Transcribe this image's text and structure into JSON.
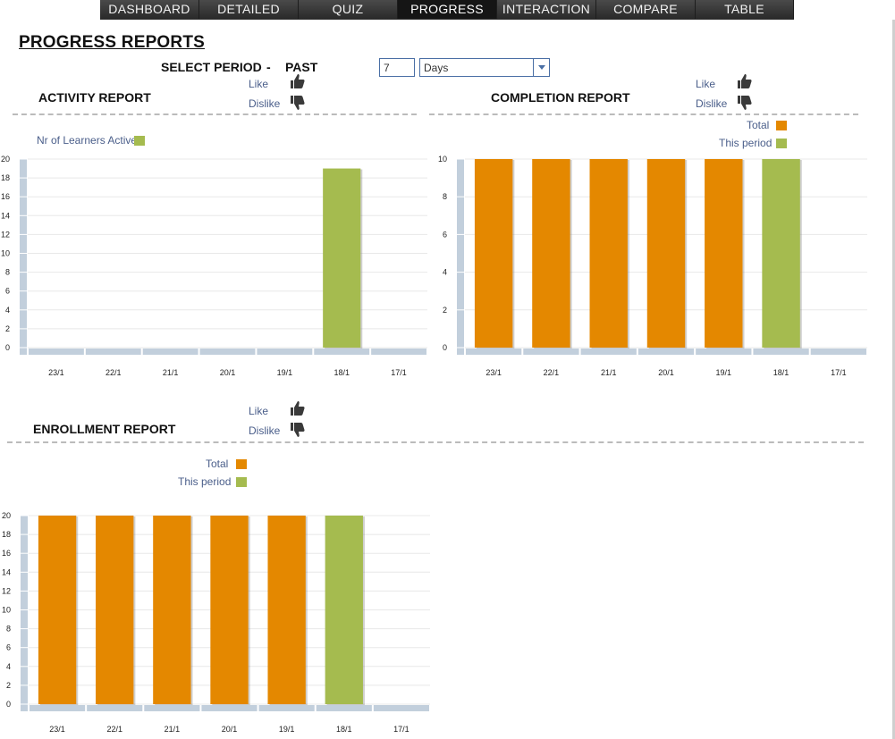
{
  "nav": {
    "tabs": [
      {
        "label": "DASHBOARD",
        "active": false
      },
      {
        "label": "DETAILED",
        "active": false
      },
      {
        "label": "QUIZ",
        "active": false
      },
      {
        "label": "PROGRESS",
        "active": true
      },
      {
        "label": "INTERACTION",
        "active": false
      },
      {
        "label": "COMPARE",
        "active": false
      },
      {
        "label": "TABLE",
        "active": false
      }
    ]
  },
  "page_title": "PROGRESS REPORTS",
  "period": {
    "label": "SELECT PERIOD",
    "dash": "-",
    "past_label": "PAST",
    "count_value": "7",
    "unit_value": "Days"
  },
  "feedback": {
    "like": "Like",
    "dislike": "Dislike"
  },
  "colors": {
    "total": "#e48800",
    "this_period": "#a5bb4f",
    "axis": "#c2cfdc",
    "grid": "#e8e8e8"
  },
  "activity": {
    "title": "ACTIVITY REPORT",
    "legend": [
      {
        "label": "Nr of Learners Active",
        "color": "#a5bb4f"
      }
    ]
  },
  "completion": {
    "title": "COMPLETION REPORT",
    "legend": [
      {
        "label": "Total",
        "color": "#e48800"
      },
      {
        "label": "This period",
        "color": "#a5bb4f"
      }
    ]
  },
  "enrollment": {
    "title": "ENROLLMENT REPORT",
    "legend": [
      {
        "label": "Total",
        "color": "#e48800"
      },
      {
        "label": "This period",
        "color": "#a5bb4f"
      }
    ]
  },
  "chart_data": [
    {
      "type": "bar",
      "title": "ACTIVITY REPORT",
      "categories": [
        "23/1",
        "22/1",
        "21/1",
        "20/1",
        "19/1",
        "18/1",
        "17/1"
      ],
      "series": [
        {
          "name": "Nr of Learners Active",
          "color": "#a5bb4f",
          "values": [
            0,
            0,
            0,
            0,
            0,
            19,
            0
          ]
        }
      ],
      "yticks": [
        0,
        2,
        4,
        6,
        8,
        10,
        12,
        14,
        16,
        18,
        20
      ],
      "ylim": [
        0,
        20
      ],
      "grid": true,
      "legend": "top-left"
    },
    {
      "type": "bar",
      "title": "COMPLETION REPORT",
      "categories": [
        "23/1",
        "22/1",
        "21/1",
        "20/1",
        "19/1",
        "18/1",
        "17/1"
      ],
      "series": [
        {
          "name": "Total",
          "color": "#e48800",
          "values": [
            10,
            10,
            10,
            10,
            10,
            0,
            0
          ]
        },
        {
          "name": "This period",
          "color": "#a5bb4f",
          "values": [
            0,
            0,
            0,
            0,
            0,
            10,
            0
          ]
        }
      ],
      "yticks": [
        0,
        2,
        4,
        6,
        8,
        10
      ],
      "ylim": [
        0,
        10
      ],
      "grid": true,
      "legend": "top-right"
    },
    {
      "type": "bar",
      "title": "ENROLLMENT REPORT",
      "categories": [
        "23/1",
        "22/1",
        "21/1",
        "20/1",
        "19/1",
        "18/1",
        "17/1"
      ],
      "series": [
        {
          "name": "Total",
          "color": "#e48800",
          "values": [
            20,
            20,
            20,
            20,
            20,
            0,
            0
          ]
        },
        {
          "name": "This period",
          "color": "#a5bb4f",
          "values": [
            0,
            0,
            0,
            0,
            0,
            20,
            0
          ]
        }
      ],
      "yticks": [
        0,
        2,
        4,
        6,
        8,
        10,
        12,
        14,
        16,
        18,
        20
      ],
      "ylim": [
        0,
        20
      ],
      "grid": true,
      "legend": "top-left"
    }
  ]
}
